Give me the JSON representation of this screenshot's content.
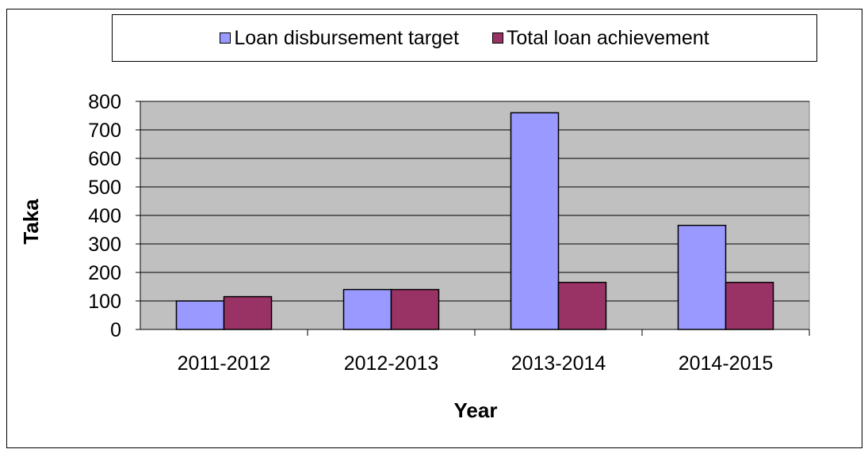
{
  "chart_data": {
    "type": "bar",
    "title": "",
    "xlabel": "Year",
    "ylabel": "Taka",
    "categories": [
      "2011-2012",
      "2012-2013",
      "2013-2014",
      "2014-2015"
    ],
    "series": [
      {
        "name": "Loan disbursement target",
        "values": [
          100,
          140,
          760,
          365
        ],
        "color": "#9999FF"
      },
      {
        "name": "Total loan achievement",
        "values": [
          115,
          140,
          165,
          165
        ],
        "color": "#993366"
      }
    ],
    "ylim": [
      0,
      800
    ],
    "yticks": [
      0,
      100,
      200,
      300,
      400,
      500,
      600,
      700,
      800
    ],
    "grid": true,
    "legend_position": "top",
    "plot_background": "#C0C0C0"
  }
}
